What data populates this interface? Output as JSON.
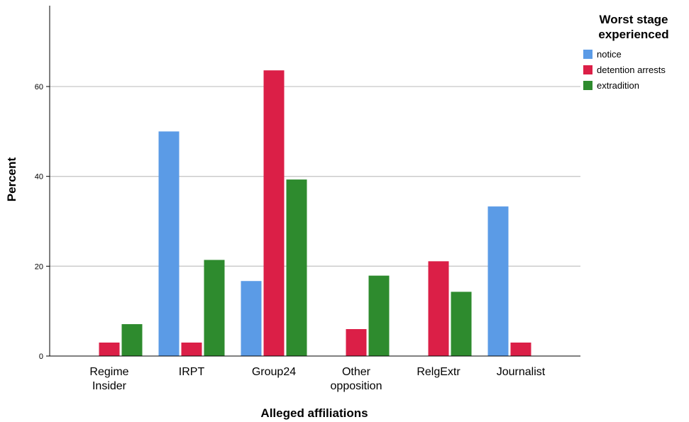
{
  "chart_data": {
    "type": "bar",
    "categories": [
      [
        "Regime",
        "Insider"
      ],
      [
        "IRPT"
      ],
      [
        "Group24"
      ],
      [
        "Other",
        "opposition"
      ],
      [
        "RelgExtr"
      ],
      [
        "Journalist"
      ]
    ],
    "series": [
      {
        "name": "notice",
        "color": "#5b9be6",
        "values": [
          0,
          50,
          16.7,
          0,
          0,
          33.3
        ]
      },
      {
        "name": "detention arrests",
        "color": "#db1f47",
        "values": [
          3,
          3,
          63.6,
          6,
          21.1,
          3
        ]
      },
      {
        "name": "extradition",
        "color": "#2e8b2e",
        "values": [
          7.1,
          21.4,
          39.3,
          17.9,
          14.3,
          0
        ]
      }
    ],
    "xlabel": "Alleged affiliations",
    "ylabel": "Percent",
    "ylim": [
      0,
      78
    ],
    "yticks": [
      0,
      20,
      40,
      60
    ],
    "grid": true,
    "legend": {
      "title_lines": [
        "Worst stage",
        "experienced"
      ],
      "position": "top-right"
    }
  }
}
